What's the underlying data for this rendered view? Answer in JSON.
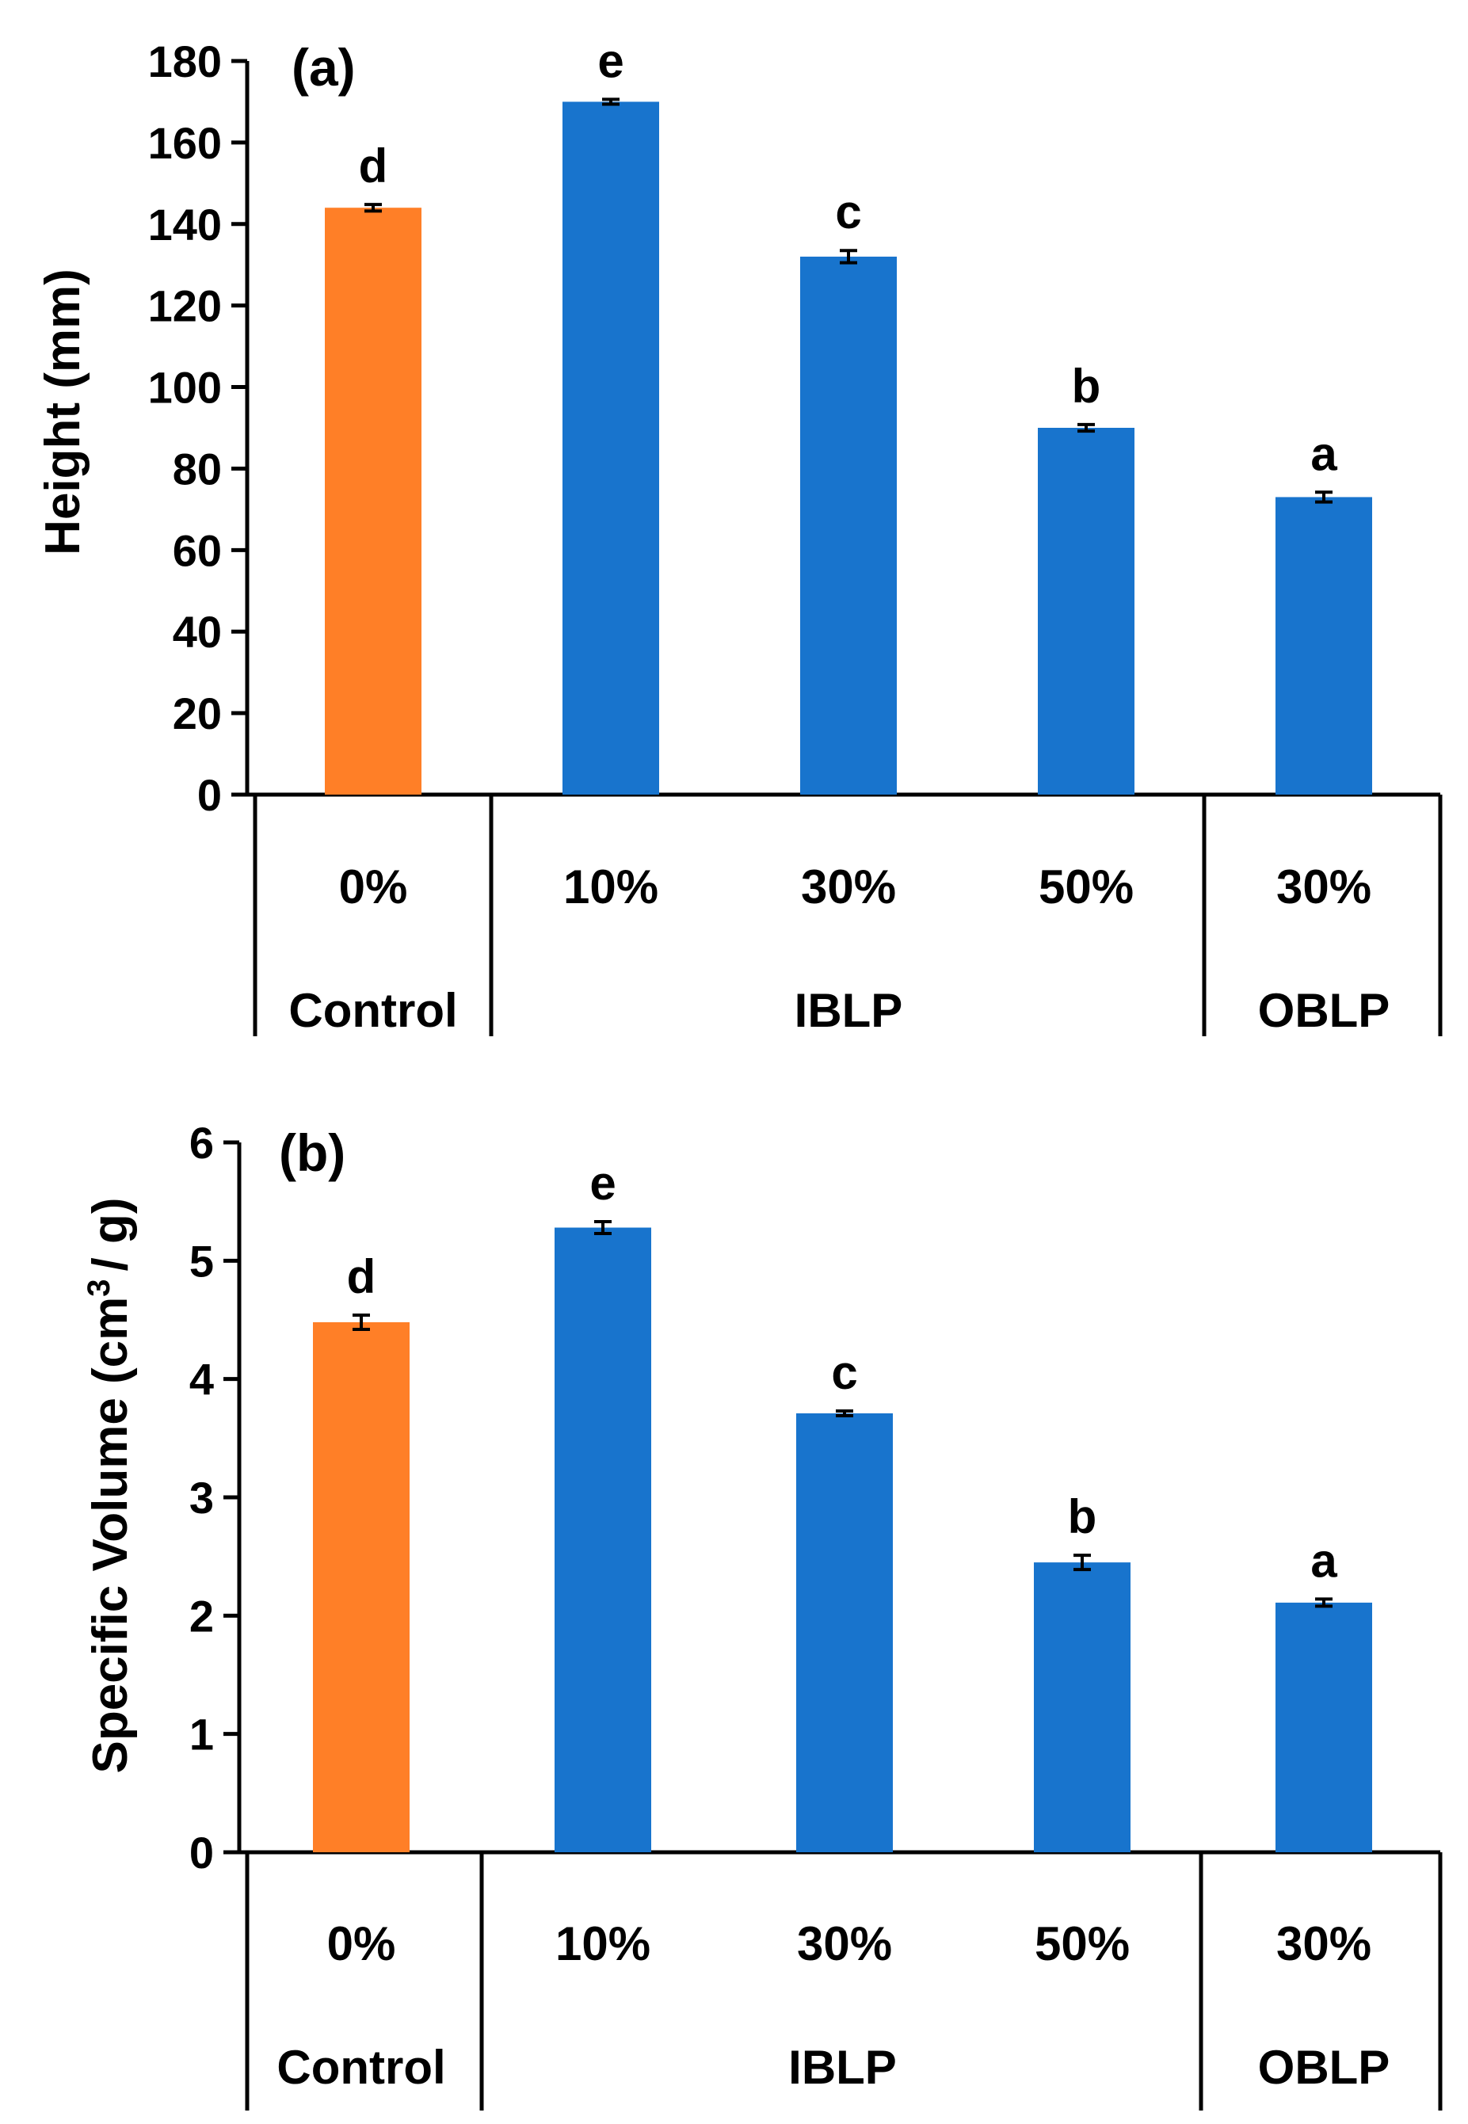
{
  "chart_data": [
    {
      "type": "bar",
      "panel_label": "(a)",
      "ylabel": "Height (mm)",
      "ylim": [
        0,
        180
      ],
      "yticks": [
        0,
        20,
        40,
        60,
        80,
        100,
        120,
        140,
        160,
        180
      ],
      "categories": [
        "0%",
        "10%",
        "30%",
        "50%",
        "30%"
      ],
      "groups": [
        {
          "label": "Control",
          "count": 1
        },
        {
          "label": "IBLP",
          "count": 3
        },
        {
          "label": "OBLP",
          "count": 1
        }
      ],
      "values": [
        144,
        170,
        132,
        90,
        73
      ],
      "errors": [
        0.8,
        0.6,
        1.5,
        0.8,
        1.2
      ],
      "letters": [
        "d",
        "e",
        "c",
        "b",
        "a"
      ],
      "colors": [
        "#FF7F27",
        "#1874CD",
        "#1874CD",
        "#1874CD",
        "#1874CD"
      ]
    },
    {
      "type": "bar",
      "panel_label": "(b)",
      "ylabel_main": "Specific Volume (cm",
      "ylabel_sup": "3",
      "ylabel_end": "/ g)",
      "ylim": [
        0,
        6
      ],
      "yticks": [
        0,
        1,
        2,
        3,
        4,
        5,
        6
      ],
      "categories": [
        "0%",
        "10%",
        "30%",
        "50%",
        "30%"
      ],
      "groups": [
        {
          "label": "Control",
          "count": 1
        },
        {
          "label": "IBLP",
          "count": 3
        },
        {
          "label": "OBLP",
          "count": 1
        }
      ],
      "values": [
        4.48,
        5.28,
        3.71,
        2.45,
        2.11
      ],
      "errors": [
        0.06,
        0.05,
        0.02,
        0.06,
        0.03
      ],
      "letters": [
        "d",
        "e",
        "c",
        "b",
        "a"
      ],
      "colors": [
        "#FF7F27",
        "#1874CD",
        "#1874CD",
        "#1874CD",
        "#1874CD"
      ]
    }
  ]
}
